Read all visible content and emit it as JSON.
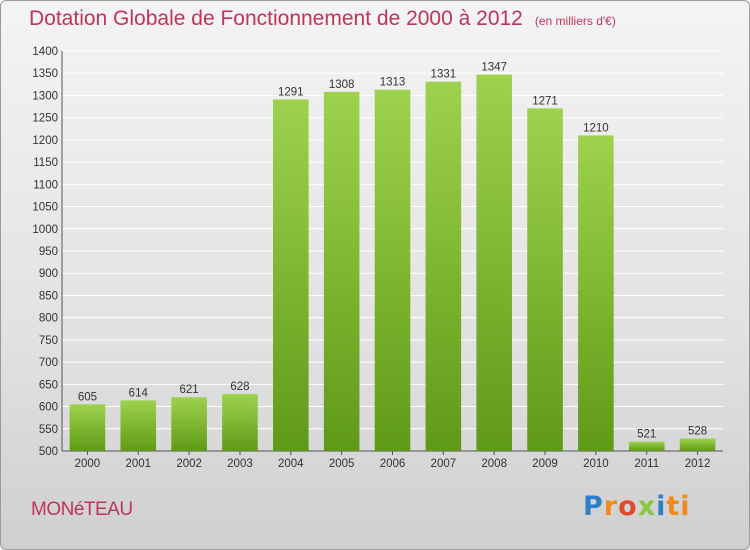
{
  "title": "Dotation Globale de Fonctionnement de 2000 à 2012",
  "unit_note": "(en milliers d'€)",
  "commune": "MONéTEAU",
  "logo": {
    "letters": [
      "P",
      "r",
      "o",
      "x",
      "i",
      "ti"
    ]
  },
  "colors": {
    "title": "#c0335a",
    "bar_light": "#9ed24e",
    "bar_dark": "#5f9a16",
    "grid": "#ffffff"
  },
  "chart_data": {
    "type": "bar",
    "categories": [
      "2000",
      "2001",
      "2002",
      "2003",
      "2004",
      "2005",
      "2006",
      "2007",
      "2008",
      "2009",
      "2010",
      "2011",
      "2012"
    ],
    "values": [
      605,
      614,
      621,
      628,
      1291,
      1308,
      1313,
      1331,
      1347,
      1271,
      1210,
      521,
      528
    ],
    "ylim": [
      500,
      1400
    ],
    "yticks": [
      500,
      550,
      600,
      650,
      700,
      750,
      800,
      850,
      900,
      950,
      1000,
      1050,
      1100,
      1150,
      1200,
      1250,
      1300,
      1350,
      1400
    ],
    "grid": true,
    "title": "Dotation Globale de Fonctionnement de 2000 à 2012",
    "xlabel": "",
    "ylabel": ""
  }
}
